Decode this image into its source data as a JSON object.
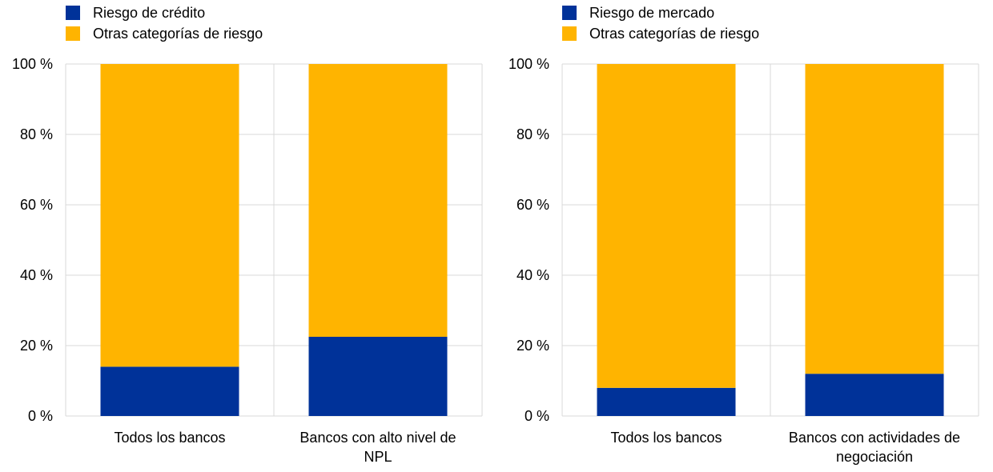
{
  "colors": {
    "primary_series": "#003299",
    "other_series": "#FFB400",
    "gridline": "#D9D9D9"
  },
  "chart_data": [
    {
      "type": "bar",
      "stacked": true,
      "categories": [
        "Todos los bancos",
        "Bancos con alto nivel de NPL"
      ],
      "series": [
        {
          "name": "Riesgo de crédito",
          "values": [
            14,
            22.5
          ]
        },
        {
          "name": "Otras categorías de riesgo",
          "values": [
            86,
            77.5
          ]
        }
      ],
      "ylim": [
        0,
        100
      ],
      "yticks": [
        "0 %",
        "20 %",
        "40 %",
        "60 %",
        "80 %",
        "100 %"
      ],
      "grid": true,
      "legend_position": "top-left"
    },
    {
      "type": "bar",
      "stacked": true,
      "categories": [
        "Todos los bancos",
        "Bancos con actividades de negociación"
      ],
      "series": [
        {
          "name": "Riesgo de mercado",
          "values": [
            8,
            12
          ]
        },
        {
          "name": "Otras categorías de riesgo",
          "values": [
            92,
            88
          ]
        }
      ],
      "ylim": [
        0,
        100
      ],
      "yticks": [
        "0 %",
        "20 %",
        "40 %",
        "60 %",
        "80 %",
        "100 %"
      ],
      "grid": true,
      "legend_position": "top-left"
    }
  ]
}
